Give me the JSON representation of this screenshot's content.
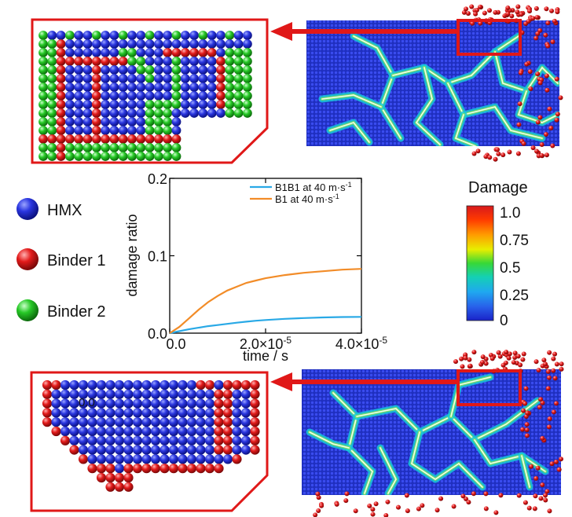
{
  "legend": {
    "items": [
      {
        "label": "HMX",
        "color": "#1f2fd8"
      },
      {
        "label": "Binder 1",
        "color": "#e01818"
      },
      {
        "label": "Binder 2",
        "color": "#22c422"
      }
    ]
  },
  "colorbar": {
    "title": "Damage",
    "ticks": [
      "1.0",
      "0.75",
      "0.5",
      "0.25",
      "0"
    ]
  },
  "colors": {
    "hmx": "#1f2fd8",
    "binder1": "#e01818",
    "binder2": "#22c422",
    "frame": "#e01818"
  },
  "zoom_bottom": {
    "stray_label": "0.0"
  },
  "chart_data": {
    "type": "line",
    "xlabel": "time / s",
    "ylabel": "damage ratio",
    "xlim": [
      0,
      4e-05
    ],
    "ylim": [
      0,
      0.2
    ],
    "x_ticks": [
      {
        "value": 0,
        "label": "0.0",
        "exp": ""
      },
      {
        "value": 2e-05,
        "label": "2.0×10",
        "exp": "-5"
      },
      {
        "value": 4e-05,
        "label": "4.0×10",
        "exp": "-5"
      }
    ],
    "y_ticks": [
      {
        "value": 0,
        "label": "0.0"
      },
      {
        "value": 0.1,
        "label": "0.1"
      },
      {
        "value": 0.2,
        "label": "0.2"
      }
    ],
    "legend_position": "top-right",
    "series": [
      {
        "name": "B1B1 at 40 m·s",
        "name_exp": "-1",
        "color": "#29a9e6",
        "x": [
          0,
          2e-06,
          4e-06,
          6e-06,
          8e-06,
          1e-05,
          1.2e-05,
          1.4e-05,
          1.6e-05,
          1.8e-05,
          2e-05,
          2.4e-05,
          2.8e-05,
          3.2e-05,
          3.6e-05,
          4e-05
        ],
        "y": [
          0,
          0.0025,
          0.005,
          0.007,
          0.009,
          0.0105,
          0.012,
          0.0135,
          0.0148,
          0.016,
          0.017,
          0.0185,
          0.0195,
          0.0203,
          0.0208,
          0.021
        ]
      },
      {
        "name": "B1 at 40 m·s",
        "name_exp": "-1",
        "color": "#f28c28",
        "x": [
          0,
          2e-06,
          4e-06,
          6e-06,
          8e-06,
          1e-05,
          1.2e-05,
          1.4e-05,
          1.6e-05,
          1.8e-05,
          2e-05,
          2.4e-05,
          2.8e-05,
          3.2e-05,
          3.6e-05,
          4e-05
        ],
        "y": [
          0,
          0.008,
          0.019,
          0.03,
          0.04,
          0.048,
          0.055,
          0.06,
          0.065,
          0.068,
          0.071,
          0.075,
          0.078,
          0.08,
          0.082,
          0.083
        ]
      }
    ]
  }
}
